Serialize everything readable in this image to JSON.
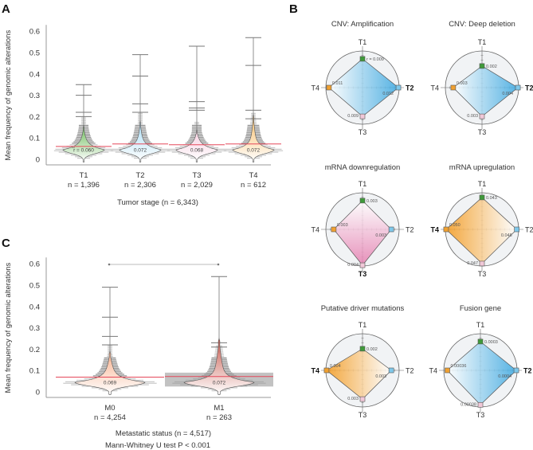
{
  "panels": {
    "a": "A",
    "b": "B",
    "c": "C"
  },
  "chart_data": [
    {
      "type": "violin",
      "panel": "A",
      "ylabel": "Mean frequency of genomic alterations",
      "xlabel": "Tumor stage (n = 6,343)",
      "ylim": [
        0,
        0.6
      ],
      "yticks": [
        "0",
        "0.1",
        "0.2",
        "0.3",
        "0.4",
        "0.5",
        "0.6"
      ],
      "categories": [
        "T1",
        "T2",
        "T3",
        "T4"
      ],
      "n_labels": [
        "n = 1,396",
        "n = 2,306",
        "n = 2,029",
        "n = 612"
      ],
      "mean_labels": [
        "̅r = 0.060",
        "0.072",
        "0.068",
        "0.072"
      ],
      "means": [
        0.06,
        0.072,
        0.068,
        0.072
      ],
      "outliers": [
        [
          0.35,
          0.3,
          0.22,
          0.2
        ],
        [
          0.49,
          0.39,
          0.26,
          0.22
        ],
        [
          0.53,
          0.27,
          0.24,
          0.23
        ],
        [
          0.57,
          0.44,
          0.23,
          0.19
        ]
      ],
      "tail_top": [
        0.15,
        0.17,
        0.13,
        0.2
      ],
      "colors": [
        "#6dbb5a",
        "#a9dcf5",
        "#f8cfe0",
        "#f9bb63"
      ]
    },
    {
      "type": "violin",
      "panel": "C",
      "ylabel": "Mean frequency of genomic alterations",
      "xlabel": "Metastatic status (n = 4,517)",
      "test_label": "Mann-Whitney U test P < 0.001",
      "ylim": [
        0,
        0.6
      ],
      "yticks": [
        "0",
        "0.1",
        "0.2",
        "0.3",
        "0.4",
        "0.5",
        "0.6"
      ],
      "categories": [
        "M0",
        "M1"
      ],
      "n_labels": [
        "n = 4,254",
        "n = 263"
      ],
      "mean_labels": [
        "0.069",
        "0.072"
      ],
      "means": [
        0.069,
        0.072
      ],
      "outliers": [
        [
          0.49,
          0.35,
          0.26,
          0.22
        ],
        [
          0.54,
          0.23,
          0.21
        ]
      ],
      "tail_top": [
        0.18,
        0.24
      ],
      "colors": [
        "#f8b08c",
        "#c85a4e"
      ],
      "significance": "P < 0.001"
    },
    {
      "type": "radar",
      "panel": "B",
      "axes": [
        "T1",
        "T2",
        "T3",
        "T4"
      ],
      "charts": [
        {
          "title": "CNV: Amplification",
          "values": [
            0.009,
            0.012,
            0.009,
            0.011
          ],
          "labels": [
            "r = 0.009",
            "0.012",
            "0.009",
            "0.011"
          ],
          "highlight": "T2",
          "color": "#3aa7e0"
        },
        {
          "title": "CNV: Deep deletion",
          "values": [
            0.002,
            0.004,
            0.003,
            0.003
          ],
          "labels": [
            "0.002",
            "0.004",
            "0.003",
            "0.003"
          ],
          "highlight": "T2",
          "color": "#3aa7e0"
        },
        {
          "title": "mRNA downregulation",
          "values": [
            0.003,
            0.003,
            0.004,
            0.003
          ],
          "labels": [
            "0.003",
            "0.003",
            "0.004",
            "0.003"
          ],
          "highlight": "T3",
          "color": "#e57fb0"
        },
        {
          "title": "mRNA upregulation",
          "values": [
            0.043,
            0.048,
            0.047,
            0.05
          ],
          "labels": [
            "0.043",
            "0.048",
            "0.047",
            "0.050"
          ],
          "highlight": "T4",
          "color": "#f39a1e"
        },
        {
          "title": "Putative driver mutations",
          "values": [
            0.002,
            0.003,
            0.003,
            0.004
          ],
          "labels": [
            "0.002",
            "0.003",
            "0.003",
            "0.004"
          ],
          "highlight": "T4",
          "color": "#f39a1e"
        },
        {
          "title": "Fusion gene",
          "values": [
            0.0003,
            0.0004,
            0.00038,
            0.00036
          ],
          "labels": [
            "0.0003",
            "0.0004",
            "0.00038",
            "0.00036"
          ],
          "highlight": "T2",
          "color": "#3aa7e0"
        }
      ],
      "marker_colors": [
        "#3f9a3a",
        "#7fc8ea",
        "#f1c8d8",
        "#f0a030"
      ]
    }
  ]
}
